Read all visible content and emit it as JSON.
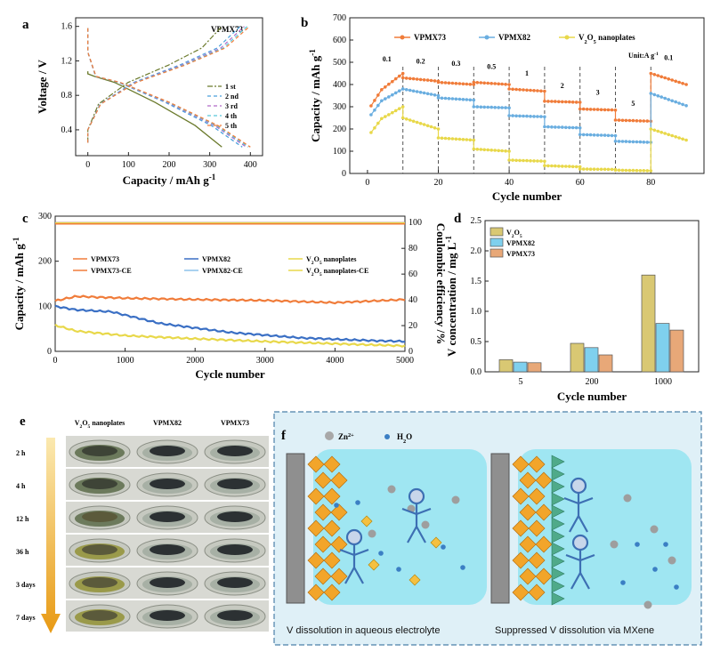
{
  "chart_data": [
    {
      "panel": "a",
      "type": "line",
      "annotation": "VPMX73",
      "xlabel": "Capacity / mAh g-1",
      "ylabel": "Voltage / V",
      "xlim": [
        -30,
        430
      ],
      "ylim": [
        0.1,
        1.7
      ],
      "xticks": [
        "0",
        "100",
        "200",
        "300",
        "400"
      ],
      "yticks": [
        "0.4",
        "0.8",
        "1.2",
        "1.6"
      ],
      "legend_position": "bottom-right",
      "series": [
        {
          "name": "1 st",
          "color": "#6b7a2c",
          "dash": "6,2,2,2",
          "discharge_end": 330,
          "charge_end": 330
        },
        {
          "name": "2 nd",
          "color": "#4a9fdc",
          "dash": "4,3",
          "discharge_end": 380,
          "charge_end": 375
        },
        {
          "name": "3 rd",
          "color": "#b06ac8",
          "dash": "4,3",
          "discharge_end": 390,
          "charge_end": 385
        },
        {
          "name": "4 th",
          "color": "#59c7d9",
          "dash": "4,3",
          "discharge_end": 395,
          "charge_end": 392
        },
        {
          "name": "5 th",
          "color": "#f07c3a",
          "dash": "4,3",
          "discharge_end": 400,
          "charge_end": 398
        }
      ]
    },
    {
      "panel": "b",
      "type": "line",
      "xlabel": "Cycle number",
      "ylabel": "Capacity / mAh g-1",
      "xlim": [
        -5,
        95
      ],
      "ylim": [
        0,
        700
      ],
      "xticks": [
        "0",
        "20",
        "40",
        "60",
        "80"
      ],
      "yticks": [
        "0",
        "100",
        "200",
        "300",
        "400",
        "500",
        "600",
        "700"
      ],
      "unit_note": "Unit:A g-1",
      "rates": [
        "0.1",
        "0.2",
        "0.3",
        "0.5",
        "1",
        "2",
        "3",
        "5",
        "0.1"
      ],
      "rate_boundaries": [
        10,
        20,
        30,
        40,
        50,
        60,
        70,
        80
      ],
      "legend_position": "top",
      "series": [
        {
          "name": "VPMX73",
          "color": "#f07c3a",
          "segments": [
            [
              340,
              450
            ],
            [
              430,
              415
            ],
            [
              410,
              400
            ],
            [
              410,
              400
            ],
            [
              380,
              370
            ],
            [
              325,
              320
            ],
            [
              290,
              285
            ],
            [
              240,
              235
            ],
            [
              450,
              400
            ]
          ]
        },
        {
          "name": "VPMX82",
          "color": "#6aaee0",
          "segments": [
            [
              300,
              380
            ],
            [
              380,
              350
            ],
            [
              340,
              330
            ],
            [
              300,
              295
            ],
            [
              260,
              255
            ],
            [
              210,
              205
            ],
            [
              175,
              170
            ],
            [
              145,
              140
            ],
            [
              360,
              305
            ]
          ]
        },
        {
          "name": "V2O5 nanoplates",
          "color": "#e8d84a",
          "segments": [
            [
              220,
              300
            ],
            [
              250,
              200
            ],
            [
              160,
              150
            ],
            [
              110,
              100
            ],
            [
              60,
              55
            ],
            [
              35,
              30
            ],
            [
              20,
              18
            ],
            [
              15,
              12
            ],
            [
              200,
              150
            ]
          ]
        }
      ]
    },
    {
      "panel": "c",
      "type": "line",
      "xlabel": "Cycle number",
      "ylabel": "Capacity / mAh g-1",
      "y2label": "Coulombic efficiency /%",
      "xlim": [
        0,
        5000
      ],
      "ylim": [
        0,
        300
      ],
      "y2lim": [
        0,
        105
      ],
      "xticks": [
        "0",
        "1000",
        "2000",
        "3000",
        "4000",
        "5000"
      ],
      "yticks": [
        "0",
        "100",
        "200",
        "300"
      ],
      "y2ticks": [
        "0",
        "20",
        "40",
        "60",
        "80",
        "100"
      ],
      "legend_position": "center",
      "series": [
        {
          "name": "VPMX73",
          "color": "#f07c3a",
          "x": [
            0,
            300,
            1000,
            2000,
            3000,
            4000,
            5000
          ],
          "y": [
            112,
            122,
            118,
            115,
            113,
            108,
            115
          ]
        },
        {
          "name": "VPMX82",
          "color": "#3a6fc4",
          "x": [
            0,
            300,
            800,
            1500,
            2500,
            3500,
            4500,
            5000
          ],
          "y": [
            100,
            92,
            88,
            62,
            42,
            30,
            24,
            22
          ]
        },
        {
          "name": "V2O5 nanoplates",
          "color": "#e8d84a",
          "x": [
            0,
            300,
            1000,
            2000,
            3000,
            4000,
            5000
          ],
          "y": [
            58,
            45,
            35,
            28,
            22,
            17,
            12
          ]
        },
        {
          "name": "VPMX73-CE",
          "color": "#f07c3a",
          "axis": "right",
          "value": 99.5
        },
        {
          "name": "VPMX82-CE",
          "color": "#8ec3ea",
          "axis": "right",
          "value": 100
        },
        {
          "name": "V2O5 nanoplates-CE",
          "color": "#e8d84a",
          "axis": "right",
          "value": 99.8
        }
      ]
    },
    {
      "panel": "d",
      "type": "bar",
      "xlabel": "Cycle number",
      "ylabel": "V concentration / mg L-1",
      "categories": [
        "5",
        "200",
        "1000"
      ],
      "ylim": [
        0,
        2.5
      ],
      "yticks": [
        "0.0",
        "0.5",
        "1.0",
        "1.5",
        "2.0",
        "2.5"
      ],
      "legend_position": "top-left",
      "series": [
        {
          "name": "V2O5",
          "color": "#d9c873",
          "values": [
            0.2,
            0.47,
            1.6
          ]
        },
        {
          "name": "VPMX82",
          "color": "#7fd0ee",
          "values": [
            0.16,
            0.4,
            0.8
          ]
        },
        {
          "name": "VPMX73",
          "color": "#e8a878",
          "values": [
            0.15,
            0.28,
            0.69
          ]
        }
      ]
    }
  ],
  "panel_e": {
    "label": "e",
    "columns": [
      "V2O5 nanoplates",
      "VPMX82",
      "VPMX73"
    ],
    "rows": [
      "2 h",
      "4 h",
      "12 h",
      "36 h",
      "3 days",
      "7 days"
    ]
  },
  "panel_f": {
    "label": "f",
    "legend_zn": "Zn2+",
    "legend_water": "H2O",
    "caption_left": "V dissolution in aqueous electrolyte",
    "caption_right": "Suppressed V dissolution via MXene"
  },
  "colors": {
    "orange": "#f07c3a",
    "blue": "#6aaee0",
    "yellow": "#e8d84a",
    "cyan_bg": "#9fe6f2"
  }
}
